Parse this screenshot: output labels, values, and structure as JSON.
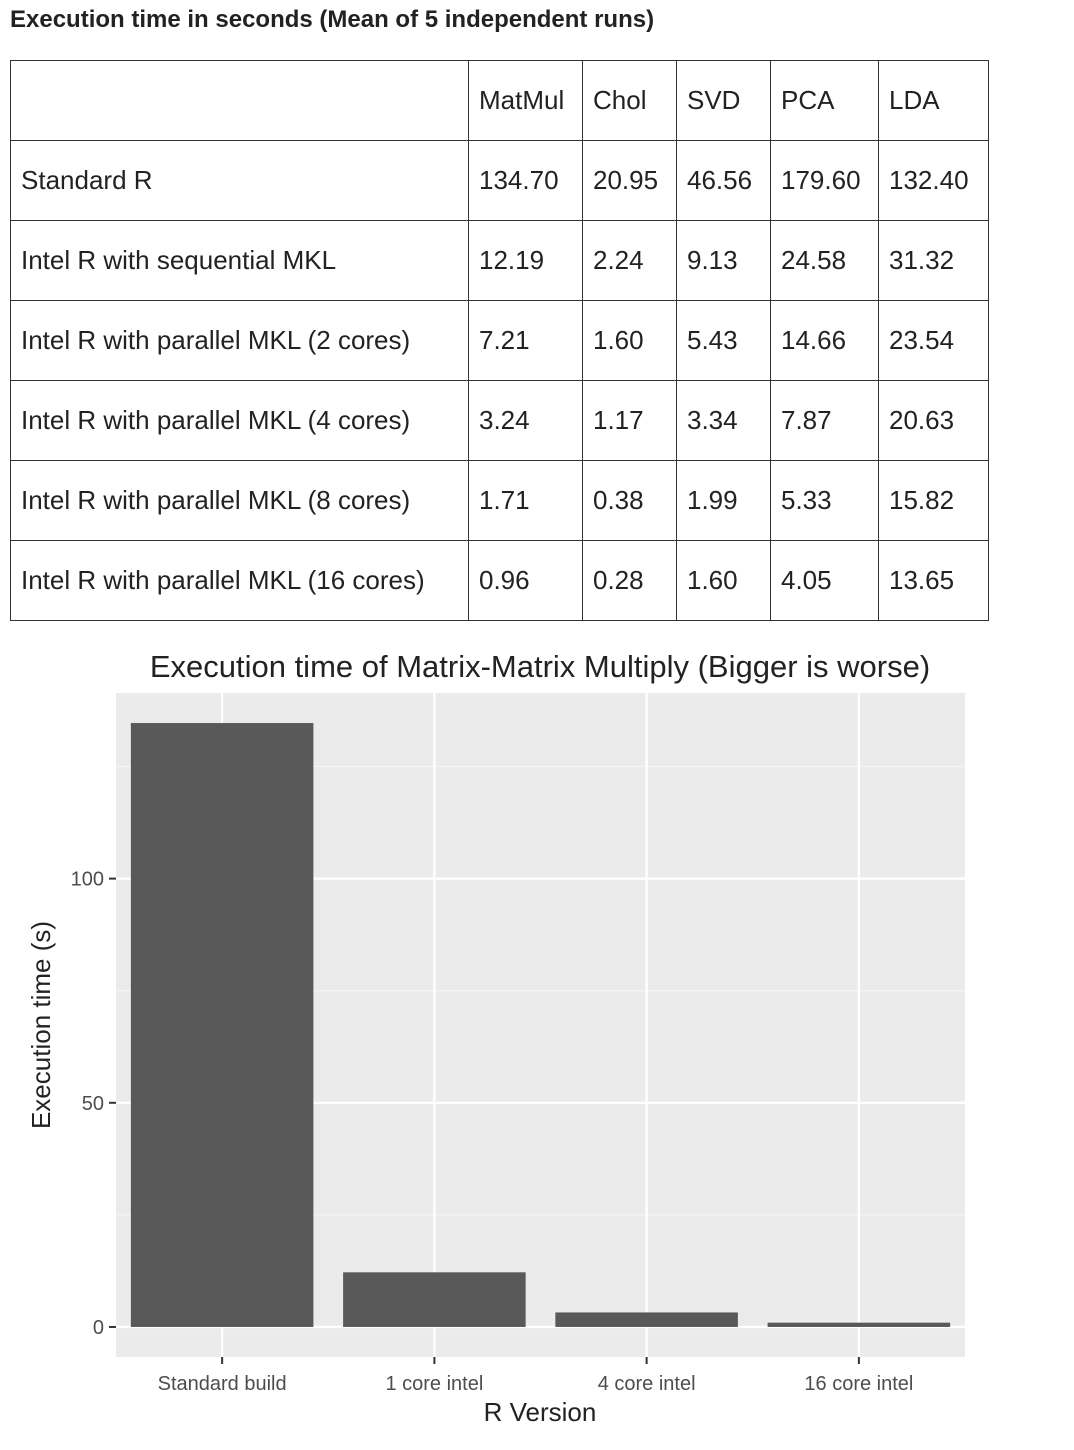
{
  "heading": "Execution time in seconds (Mean of 5 independent runs)",
  "table": {
    "corner": "",
    "columns": [
      "MatMul",
      "Chol",
      "SVD",
      "PCA",
      "LDA"
    ],
    "rows": [
      {
        "label": "Standard R",
        "values": [
          "134.70",
          "20.95",
          "46.56",
          "179.60",
          "132.40"
        ]
      },
      {
        "label": "Intel R with sequential MKL",
        "values": [
          "12.19",
          "2.24",
          "9.13",
          "24.58",
          "31.32"
        ]
      },
      {
        "label": "Intel R with parallel MKL (2 cores)",
        "values": [
          "7.21",
          "1.60",
          "5.43",
          "14.66",
          "23.54"
        ]
      },
      {
        "label": "Intel R with parallel MKL (4 cores)",
        "values": [
          "3.24",
          "1.17",
          "3.34",
          "7.87",
          "20.63"
        ]
      },
      {
        "label": "Intel R with parallel MKL (8 cores)",
        "values": [
          "1.71",
          "0.38",
          "1.99",
          "5.33",
          "15.82"
        ]
      },
      {
        "label": "Intel R with parallel MKL (16 cores)",
        "values": [
          "0.96",
          "0.28",
          "1.60",
          "4.05",
          "13.65"
        ]
      }
    ]
  },
  "chart_data": {
    "type": "bar",
    "title": "Execution time of Matrix-Matrix Multiply (Bigger is worse)",
    "xlabel": "R Version",
    "ylabel": "Execution time (s)",
    "categories": [
      "Standard build",
      "1 core intel",
      "4 core intel",
      "16 core intel"
    ],
    "values": [
      134.7,
      12.19,
      3.24,
      0.96
    ],
    "ylim": [
      -6.7,
      141.4
    ],
    "yticks": [
      0,
      50,
      100
    ],
    "grid": true,
    "legend": "none",
    "colors": {
      "bar": "#595959",
      "panel": "#ebebeb",
      "grid_major": "#ffffff",
      "grid_minor": "#f5f5f5",
      "tick_text": "#4d4d4d"
    }
  }
}
